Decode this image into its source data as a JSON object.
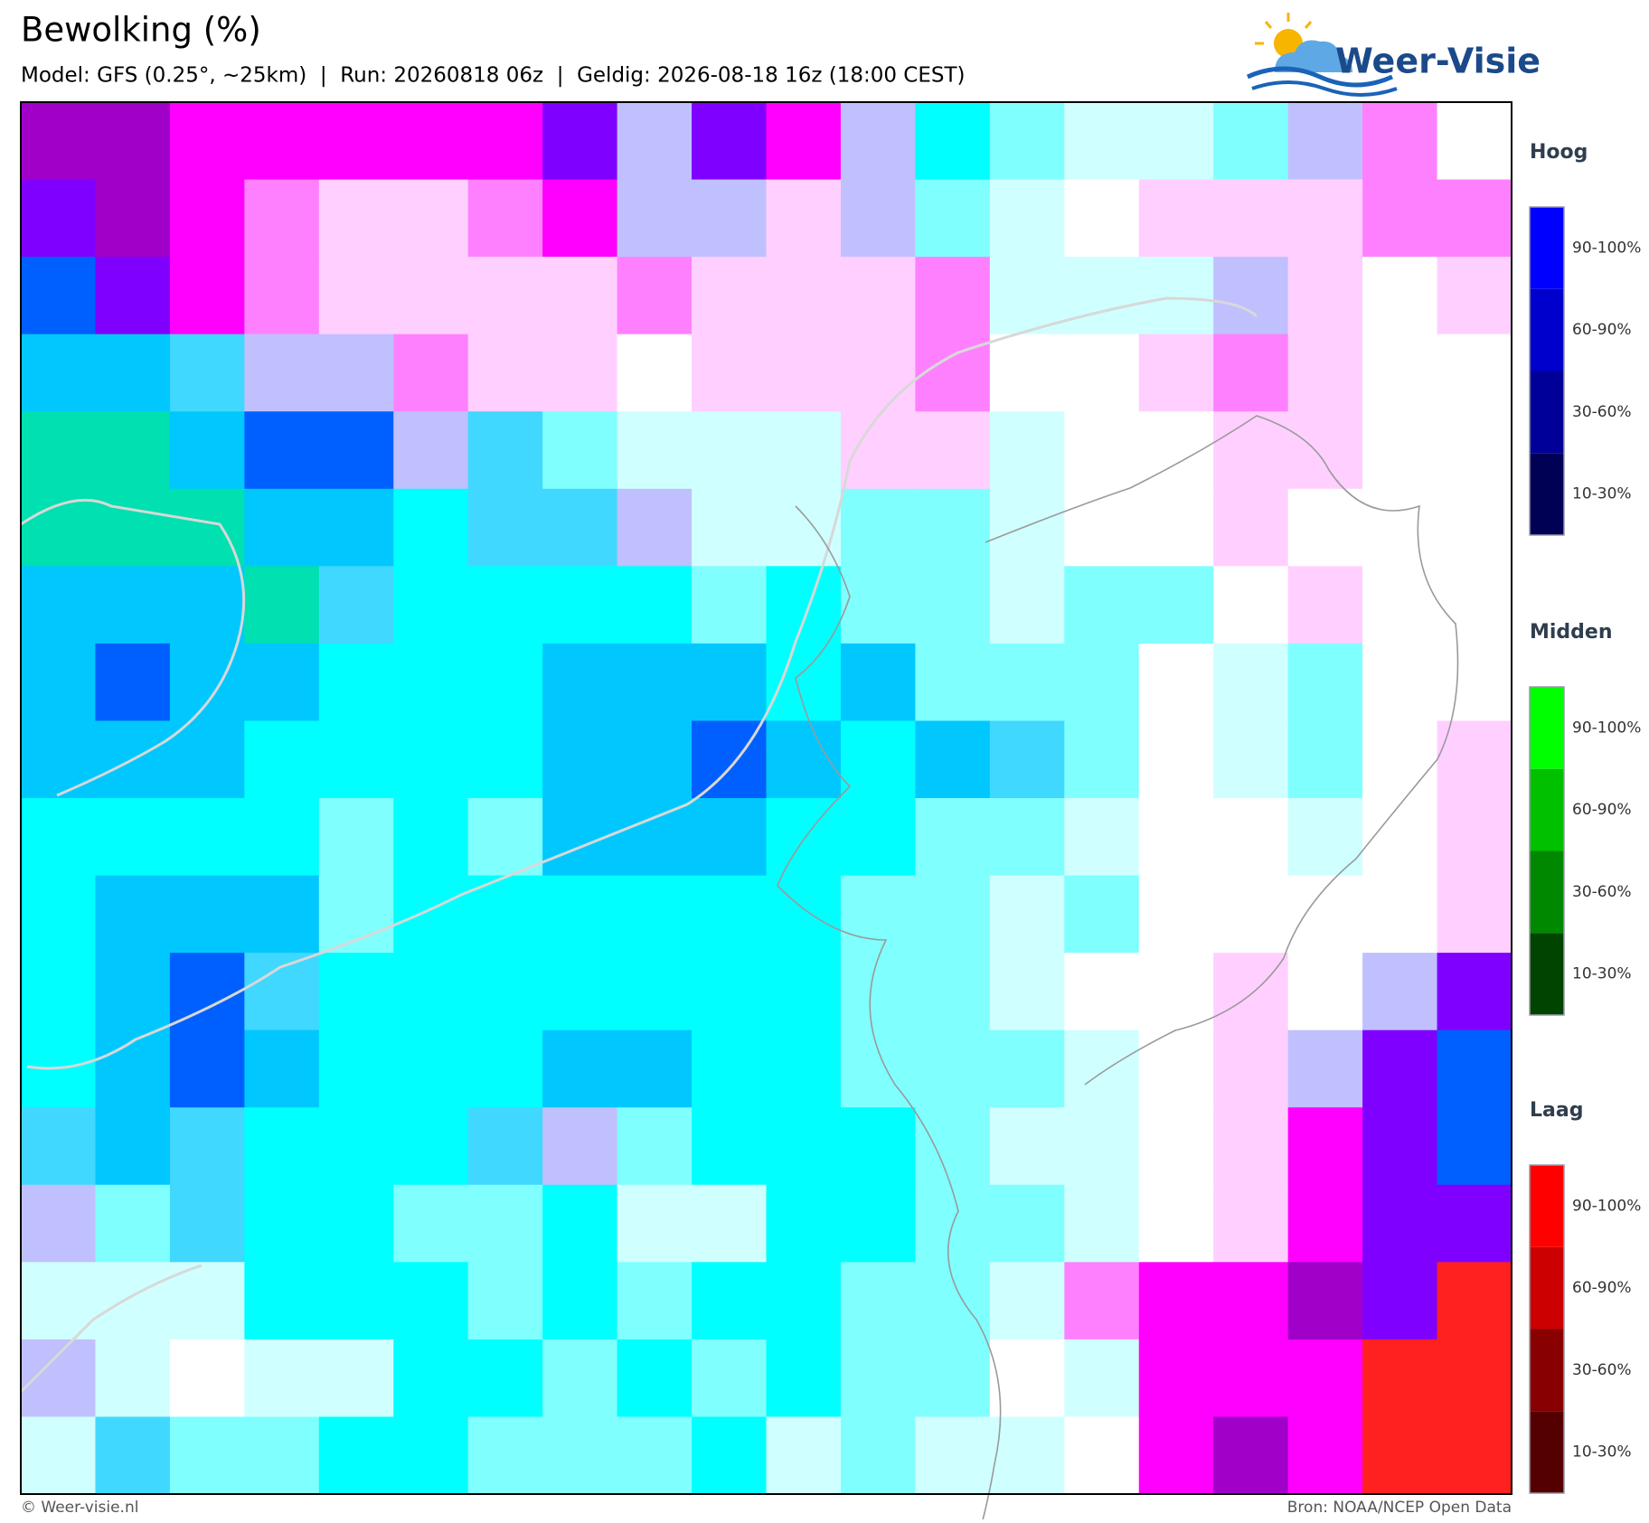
{
  "header": {
    "title": "Bewolking (%)",
    "subtitle": "Model: GFS (0.25°, ~25km)  |  Run: 20260818 06z  |  Geldig: 2026-08-18 16z (18:00 CEST)"
  },
  "logo": "Weer-Visie",
  "legend": [
    {
      "title": "Hoog",
      "colors": [
        "#0000ff",
        "#0000cc",
        "#000099",
        "#000055"
      ],
      "labels": [
        "90-100%",
        "60-90%",
        "30-60%",
        "10-30%"
      ]
    },
    {
      "title": "Midden",
      "colors": [
        "#00ff00",
        "#00c000",
        "#008800",
        "#004400"
      ],
      "labels": [
        "90-100%",
        "60-90%",
        "30-60%",
        "10-30%"
      ]
    },
    {
      "title": "Laag",
      "colors": [
        "#ff0000",
        "#cc0000",
        "#880000",
        "#550000"
      ],
      "labels": [
        "90-100%",
        "60-90%",
        "30-60%",
        "10-30%"
      ]
    }
  ],
  "footer": {
    "left": "© Weer-visie.nl",
    "right": "Bron: NOAA/NCEP Open Data"
  }
}
